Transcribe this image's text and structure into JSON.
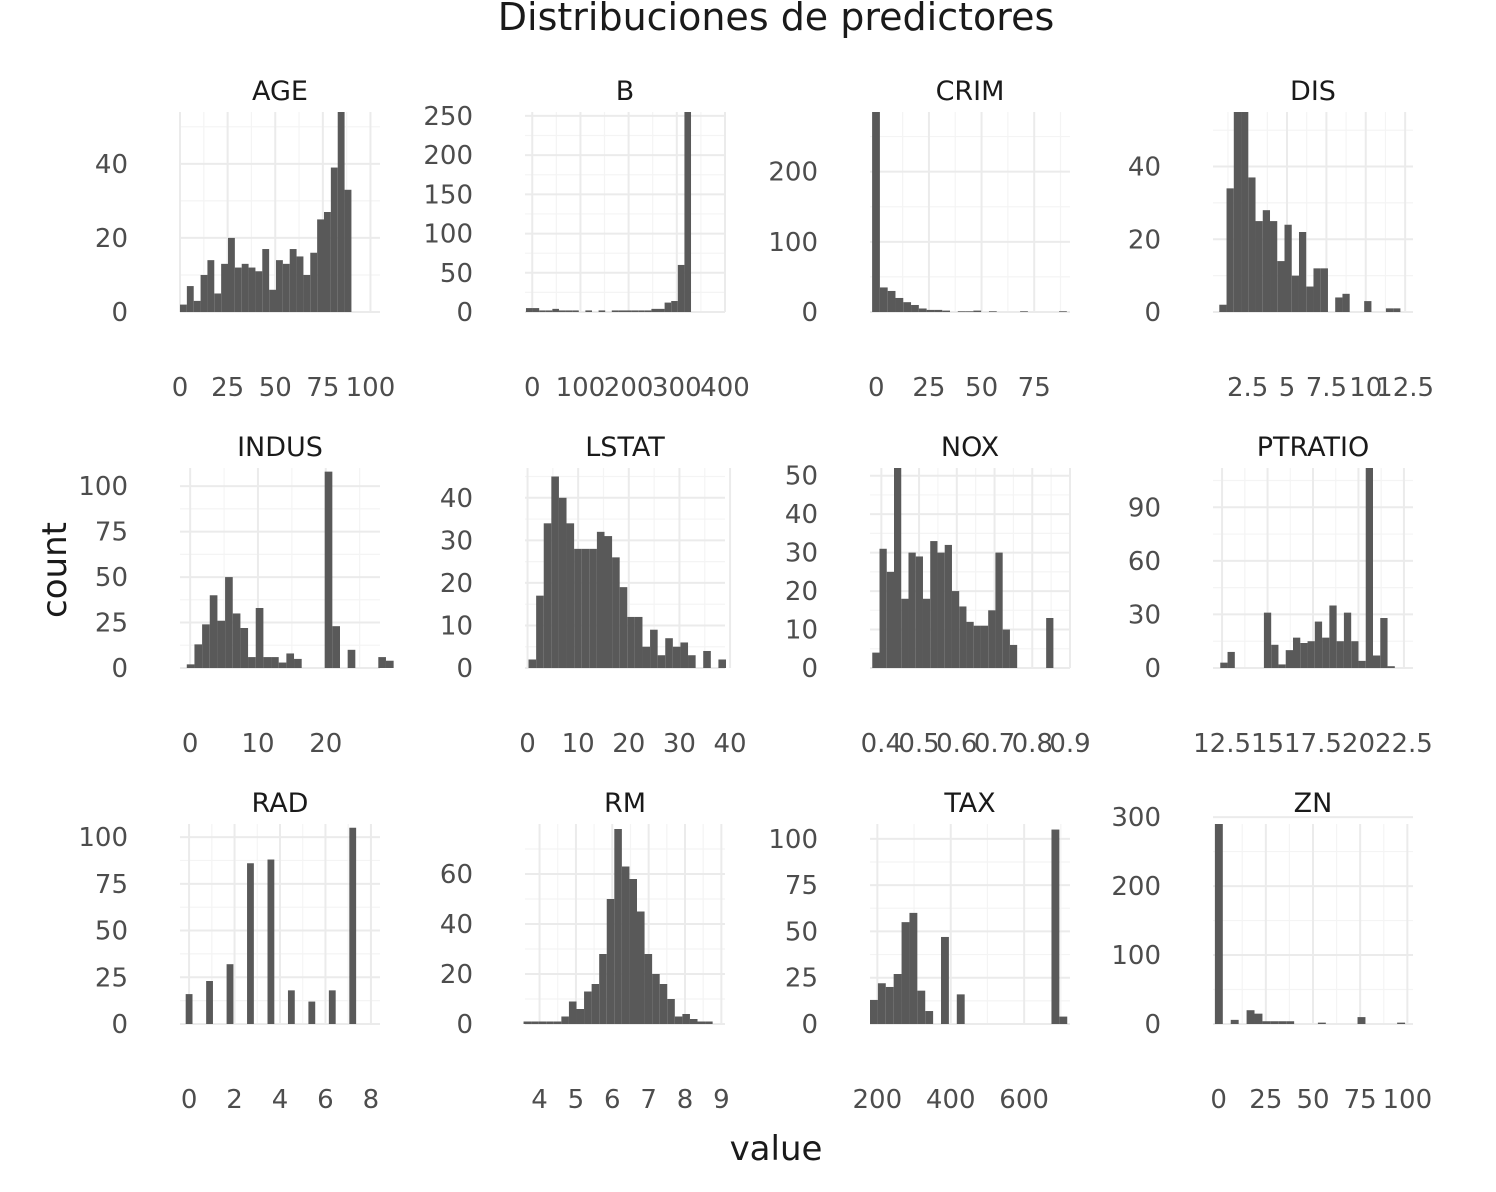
{
  "chart_data": {
    "type": "bar",
    "title": "Distribuciones de predictores",
    "xlabel": "value",
    "ylabel": "count",
    "grid": true,
    "facets": [
      {
        "name": "AGE",
        "xlim": [
          0,
          105
        ],
        "ylim": [
          0,
          54
        ],
        "x_breaks": [
          0,
          25,
          50,
          75,
          100
        ],
        "x_labels": [
          "0",
          "25",
          "50",
          "75",
          "100"
        ],
        "y_breaks": [
          0,
          20,
          40
        ],
        "y_labels": [
          "0",
          "20",
          "40"
        ],
        "bins": {
          "start": 0,
          "width": 3.6,
          "counts": [
            2,
            7,
            3,
            10,
            14,
            5,
            13,
            20,
            12,
            13,
            12,
            11,
            17,
            6,
            14,
            13,
            17,
            15,
            10,
            16,
            25,
            27,
            39,
            54,
            33
          ]
        }
      },
      {
        "name": "B",
        "xlim": [
          -15,
          400
        ],
        "ylim": [
          0,
          255
        ],
        "x_breaks": [
          0,
          100,
          200,
          300,
          400
        ],
        "x_labels": [
          "0",
          "100",
          "200",
          "300",
          "400"
        ],
        "y_breaks": [
          0,
          50,
          100,
          150,
          200,
          250
        ],
        "y_labels": [
          "0",
          "50",
          "100",
          "150",
          "200",
          "250"
        ],
        "bins": {
          "start": -13,
          "width": 13.7,
          "counts": [
            5,
            5,
            2,
            2,
            4,
            2,
            2,
            2,
            0,
            2,
            0,
            2,
            0,
            2,
            2,
            2,
            2,
            2,
            2,
            4,
            4,
            12,
            14,
            60,
            255
          ]
        }
      },
      {
        "name": "CRIM",
        "xlim": [
          -3,
          92
        ],
        "ylim": [
          0,
          285
        ],
        "x_breaks": [
          0,
          25,
          50,
          75
        ],
        "x_labels": [
          "0",
          "25",
          "50",
          "75"
        ],
        "y_breaks": [
          0,
          100,
          200
        ],
        "y_labels": [
          "0",
          "100",
          "200"
        ],
        "bins": {
          "start": -2,
          "width": 3.7,
          "counts": [
            285,
            35,
            30,
            20,
            14,
            10,
            5,
            3,
            3,
            2,
            0,
            1,
            1,
            2,
            0,
            1,
            0,
            0,
            0,
            1,
            0,
            0,
            0,
            0,
            1
          ]
        }
      },
      {
        "name": "DIS",
        "xlim": [
          0.3,
          13
        ],
        "ylim": [
          0,
          55
        ],
        "x_breaks": [
          2.5,
          5,
          7.5,
          10,
          12.5
        ],
        "x_labels": [
          "2.5",
          "5",
          "7.5",
          "10",
          "12.5"
        ],
        "y_breaks": [
          0,
          20,
          40
        ],
        "y_labels": [
          "0",
          "20",
          "40"
        ],
        "bins": {
          "start": 0.7,
          "width": 0.46,
          "counts": [
            2,
            34,
            55,
            55,
            37,
            25,
            28,
            25,
            14,
            24,
            10,
            22,
            7,
            12,
            12,
            0,
            4,
            5,
            0,
            0,
            3,
            0,
            0,
            1,
            1
          ]
        }
      },
      {
        "name": "INDUS",
        "xlim": [
          -1.5,
          28
        ],
        "ylim": [
          0,
          110
        ],
        "x_breaks": [
          0,
          10,
          20
        ],
        "x_labels": [
          "0",
          "10",
          "20"
        ],
        "y_breaks": [
          0,
          25,
          50,
          75,
          100
        ],
        "y_labels": [
          "0",
          "25",
          "50",
          "75",
          "100"
        ],
        "bins": {
          "start": -0.5,
          "width": 1.13,
          "counts": [
            2,
            13,
            24,
            40,
            26,
            50,
            30,
            22,
            6,
            33,
            6,
            6,
            3,
            8,
            5,
            0,
            0,
            0,
            108,
            23,
            0,
            10,
            0,
            0,
            0,
            6,
            4
          ]
        }
      },
      {
        "name": "LSTAT",
        "xlim": [
          -0.5,
          39
        ],
        "ylim": [
          0,
          47
        ],
        "x_breaks": [
          0,
          10,
          20,
          30,
          40
        ],
        "x_labels": [
          "0",
          "10",
          "20",
          "30",
          "40"
        ],
        "y_breaks": [
          0,
          10,
          20,
          30,
          40
        ],
        "y_labels": [
          "0",
          "10",
          "20",
          "30",
          "40"
        ],
        "bins": {
          "start": 0.2,
          "width": 1.5,
          "counts": [
            2,
            17,
            34,
            45,
            40,
            34,
            28,
            28,
            28,
            32,
            31,
            26,
            19,
            12,
            12,
            5,
            9,
            3,
            7,
            5,
            6,
            3,
            0,
            4,
            0,
            2
          ]
        }
      },
      {
        "name": "NOX",
        "xlim": [
          0.37,
          0.9
        ],
        "ylim": [
          0,
          52
        ],
        "x_breaks": [
          0.4,
          0.5,
          0.6,
          0.7,
          0.8,
          0.9
        ],
        "x_labels": [
          "0.4",
          "0.5",
          "0.6",
          "0.7",
          "0.8",
          "0.9"
        ],
        "y_breaks": [
          0,
          10,
          20,
          30,
          40,
          50
        ],
        "y_labels": [
          "0",
          "10",
          "20",
          "30",
          "40",
          "50"
        ],
        "bins": {
          "start": 0.376,
          "width": 0.0192,
          "counts": [
            4,
            31,
            25,
            52,
            18,
            30,
            29,
            18,
            33,
            30,
            32,
            20,
            16,
            12,
            11,
            11,
            15,
            30,
            10,
            6,
            0,
            0,
            0,
            0,
            13
          ]
        }
      },
      {
        "name": "PTRATIO",
        "xlim": [
          12,
          23
        ],
        "ylim": [
          0,
          112
        ],
        "x_breaks": [
          12.5,
          15,
          17.5,
          20,
          22.5
        ],
        "x_labels": [
          "12.5",
          "15",
          "17.5",
          "20",
          "22.5"
        ],
        "y_breaks": [
          0,
          30,
          60,
          90
        ],
        "y_labels": [
          "0",
          "30",
          "60",
          "90"
        ],
        "bins": {
          "start": 12.4,
          "width": 0.4,
          "counts": [
            3,
            9,
            0,
            0,
            0,
            0,
            31,
            13,
            2,
            10,
            17,
            14,
            15,
            26,
            17,
            35,
            15,
            31,
            15,
            4,
            112,
            7,
            28,
            1
          ]
        }
      },
      {
        "name": "RAD",
        "xlim": [
          -0.4,
          8.4
        ],
        "ylim": [
          0,
          107
        ],
        "x_breaks": [
          0,
          2,
          4,
          6,
          8
        ],
        "x_labels": [
          "0",
          "2",
          "4",
          "6",
          "8"
        ],
        "y_breaks": [
          0,
          25,
          50,
          75,
          100
        ],
        "y_labels": [
          "0",
          "25",
          "50",
          "75",
          "100"
        ],
        "bins": {
          "start": -0.15,
          "width": 0.3,
          "counts": [
            16,
            0,
            0,
            23,
            0,
            0,
            32,
            0,
            0,
            86,
            0,
            0,
            88,
            0,
            0,
            18,
            0,
            0,
            12,
            0,
            0,
            18,
            0,
            0,
            105
          ]
        }
      },
      {
        "name": "RM",
        "xlim": [
          3.6,
          9.1
        ],
        "ylim": [
          0,
          80
        ],
        "x_breaks": [
          4,
          5,
          6,
          7,
          8,
          9
        ],
        "x_labels": [
          "4",
          "5",
          "6",
          "7",
          "8",
          "9"
        ],
        "y_breaks": [
          0,
          20,
          40,
          60
        ],
        "y_labels": [
          "0",
          "20",
          "40",
          "60"
        ],
        "bins": {
          "start": 3.56,
          "width": 0.208,
          "counts": [
            1,
            1,
            1,
            1,
            1,
            3,
            9,
            6,
            13,
            16,
            28,
            50,
            78,
            63,
            58,
            45,
            28,
            20,
            16,
            10,
            3,
            4,
            2,
            1,
            1
          ]
        }
      },
      {
        "name": "TAX",
        "xlim": [
          180,
          725
        ],
        "ylim": [
          0,
          108
        ],
        "x_breaks": [
          200,
          400,
          600
        ],
        "x_labels": [
          "200",
          "400",
          "600"
        ],
        "y_breaks": [
          0,
          25,
          50,
          75,
          100
        ],
        "y_labels": [
          "0",
          "25",
          "50",
          "75",
          "100"
        ],
        "bins": {
          "start": 180,
          "width": 21.5,
          "counts": [
            13,
            22,
            20,
            27,
            55,
            60,
            18,
            7,
            0,
            47,
            0,
            16,
            0,
            0,
            0,
            0,
            0,
            0,
            0,
            0,
            0,
            0,
            0,
            105,
            4
          ]
        }
      },
      {
        "name": "ZN",
        "xlim": [
          -3,
          103
        ],
        "ylim": [
          0,
          290
        ],
        "x_breaks": [
          0,
          25,
          50,
          75,
          100
        ],
        "x_labels": [
          "0",
          "25",
          "50",
          "75",
          "100"
        ],
        "y_breaks": [
          0,
          100,
          200,
          300
        ],
        "y_labels": [
          "0",
          "100",
          "200",
          "300"
        ],
        "bins": {
          "start": -2,
          "width": 4.2,
          "counts": [
            290,
            0,
            6,
            0,
            20,
            15,
            4,
            4,
            4,
            4,
            0,
            0,
            0,
            2,
            0,
            0,
            0,
            0,
            10,
            0,
            0,
            0,
            0,
            2
          ]
        }
      }
    ]
  }
}
